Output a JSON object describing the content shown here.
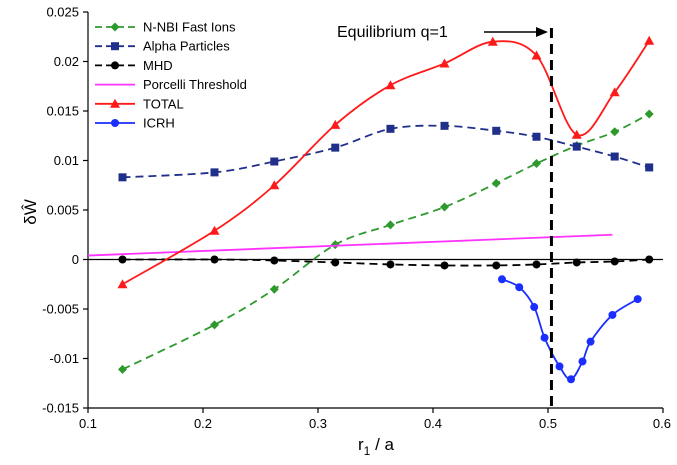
{
  "chart_data": {
    "type": "line",
    "title": "",
    "xlabel": "r",
    "xlabel_sub": "1",
    "xlabel_suffix": " / a",
    "ylabel": "δŴ",
    "xlim": [
      0.1,
      0.6
    ],
    "ylim": [
      -0.015,
      0.025
    ],
    "xticks": [
      0.1,
      0.2,
      0.3,
      0.4,
      0.5,
      0.6
    ],
    "xtick_labels": [
      "0.1",
      "0.2",
      "0.3",
      "0.4",
      "0.5",
      "0.6"
    ],
    "yticks": [
      -0.015,
      -0.01,
      -0.005,
      0,
      0.005,
      0.01,
      0.015,
      0.02,
      0.025
    ],
    "ytick_labels": [
      "-0.015",
      "-0.01",
      "-0.005",
      "0",
      "0.005",
      "0.01",
      "0.015",
      "0.02",
      "0.025"
    ],
    "grid": false,
    "legend_position": "top-left",
    "annotation": {
      "text": "Equilibrium q=1",
      "x": 0.503
    },
    "series": [
      {
        "name": "N-NBI Fast Ions",
        "color": "#2e9a2e",
        "marker": "diamond",
        "dash": "dashed",
        "x": [
          0.13,
          0.21,
          0.262,
          0.315,
          0.363,
          0.41,
          0.455,
          0.49,
          0.525,
          0.558,
          0.588
        ],
        "y": [
          -0.0111,
          -0.0066,
          -0.003,
          0.0015,
          0.0035,
          0.0053,
          0.0077,
          0.0097,
          0.0115,
          0.0129,
          0.0147
        ]
      },
      {
        "name": "Alpha Particles",
        "color": "#1f2f8a",
        "marker": "square",
        "dash": "dashed",
        "x": [
          0.13,
          0.21,
          0.262,
          0.315,
          0.363,
          0.41,
          0.455,
          0.49,
          0.525,
          0.558,
          0.588
        ],
        "y": [
          0.0083,
          0.0088,
          0.0099,
          0.0113,
          0.0132,
          0.0135,
          0.013,
          0.0124,
          0.0114,
          0.0104,
          0.0093
        ]
      },
      {
        "name": "MHD",
        "color": "#000000",
        "marker": "circle",
        "dash": "dashed",
        "x": [
          0.13,
          0.21,
          0.262,
          0.315,
          0.363,
          0.41,
          0.455,
          0.49,
          0.525,
          0.558,
          0.588
        ],
        "y": [
          0.0,
          0.0,
          -0.0001,
          -0.0003,
          -0.0005,
          -0.0006,
          -0.0006,
          -0.0005,
          -0.0003,
          -0.0002,
          0.0
        ]
      },
      {
        "name": "Porcelli Threshold",
        "color": "#ff33ff",
        "marker": "none",
        "dash": "solid",
        "x": [
          0.1,
          0.556
        ],
        "y": [
          0.0004,
          0.0025
        ]
      },
      {
        "name": "TOTAL",
        "color": "#ff1a1a",
        "marker": "triangle",
        "dash": "solid",
        "x": [
          0.13,
          0.21,
          0.262,
          0.315,
          0.363,
          0.41,
          0.452,
          0.49,
          0.525,
          0.558,
          0.588
        ],
        "y": [
          -0.0025,
          0.0029,
          0.0075,
          0.0136,
          0.0176,
          0.0198,
          0.022,
          0.0206,
          0.0126,
          0.0169,
          0.0221
        ]
      },
      {
        "name": "ICRH",
        "color": "#1a2eff",
        "marker": "circle",
        "dash": "solid",
        "x": [
          0.46,
          0.475,
          0.488,
          0.497,
          0.51,
          0.52,
          0.53,
          0.537,
          0.556,
          0.578
        ],
        "y": [
          -0.002,
          -0.0028,
          -0.0048,
          -0.0079,
          -0.0108,
          -0.0121,
          -0.0103,
          -0.0083,
          -0.0056,
          -0.004
        ]
      }
    ]
  }
}
